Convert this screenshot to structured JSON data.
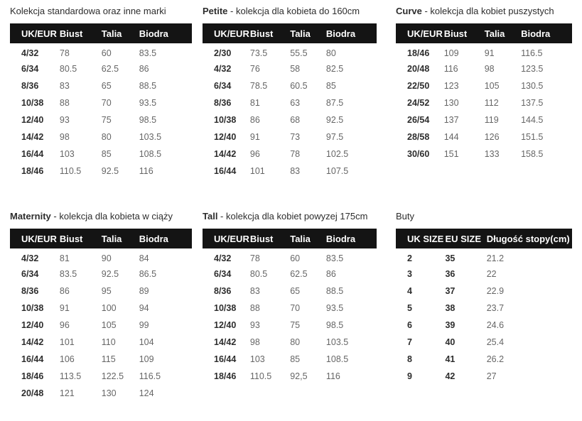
{
  "colors": {
    "header_bg": "#141414",
    "header_text": "#ffffff",
    "body_text": "#666666",
    "strong_text": "#2d2d2d"
  },
  "tables": [
    {
      "name": "standard",
      "title_bold": "",
      "title_rest": "Kolekcja standardowa oraz inne marki",
      "headers": [
        "UK/EUR",
        "Biust",
        "Talia",
        "Biodra"
      ],
      "bold_cols": 1,
      "rows": [
        [
          "4/32",
          "78",
          "60",
          "83.5"
        ],
        [
          "6/34",
          "80.5",
          "62.5",
          "86"
        ],
        [
          "8/36",
          "83",
          "65",
          "88.5"
        ],
        [
          "10/38",
          "88",
          "70",
          "93.5"
        ],
        [
          "12/40",
          "93",
          "75",
          "98.5"
        ],
        [
          "14/42",
          "98",
          "80",
          "103.5"
        ],
        [
          "16/44",
          "103",
          "85",
          "108.5"
        ],
        [
          "18/46",
          "110.5",
          "92.5",
          "116"
        ]
      ]
    },
    {
      "name": "petite",
      "title_bold": "Petite",
      "title_rest": " - kolekcja dla kobieta do 160cm",
      "headers": [
        "UK/EUR",
        "Biust",
        "Talia",
        "Biodra"
      ],
      "bold_cols": 1,
      "rows": [
        [
          "2/30",
          "73.5",
          "55.5",
          "80"
        ],
        [
          "4/32",
          "76",
          "58",
          "82.5"
        ],
        [
          "6/34",
          "78.5",
          "60.5",
          "85"
        ],
        [
          "8/36",
          "81",
          "63",
          "87.5"
        ],
        [
          "10/38",
          "86",
          "68",
          "92.5"
        ],
        [
          "12/40",
          "91",
          "73",
          "97.5"
        ],
        [
          "14/42",
          "96",
          "78",
          "102.5"
        ],
        [
          "16/44",
          "101",
          "83",
          "107.5"
        ]
      ]
    },
    {
      "name": "curve",
      "title_bold": "Curve",
      "title_rest": " - kolekcja dla kobiet puszystych",
      "headers": [
        "UK/EUR",
        "Biust",
        "Talia",
        "Biodra"
      ],
      "bold_cols": 1,
      "rows": [
        [
          "18/46",
          "109",
          "91",
          "116.5"
        ],
        [
          "20/48",
          "116",
          "98",
          "123.5"
        ],
        [
          "22/50",
          "123",
          "105",
          "130.5"
        ],
        [
          "24/52",
          "130",
          "112",
          "137.5"
        ],
        [
          "26/54",
          "137",
          "119",
          "144.5"
        ],
        [
          "28/58",
          "144",
          "126",
          "151.5"
        ],
        [
          "30/60",
          "151",
          "133",
          "158.5"
        ]
      ]
    },
    {
      "name": "maternity",
      "title_bold": "Maternity",
      "title_rest": " - kolekcja dla kobieta w ciąży",
      "headers": [
        "UK/EUR",
        "Biust",
        "Talia",
        "Biodra"
      ],
      "bold_cols": 1,
      "rows": [
        [
          "4/32",
          "81",
          "90",
          "84"
        ],
        [
          "6/34",
          "83.5",
          "92.5",
          "86.5"
        ],
        [
          "8/36",
          "86",
          "95",
          "89"
        ],
        [
          "10/38",
          "91",
          "100",
          "94"
        ],
        [
          "12/40",
          "96",
          "105",
          "99"
        ],
        [
          "14/42",
          "101",
          "110",
          "104"
        ],
        [
          "16/44",
          "106",
          "115",
          "109"
        ],
        [
          "18/46",
          "113.5",
          "122.5",
          "116.5"
        ],
        [
          "20/48",
          "121",
          "130",
          "124"
        ]
      ]
    },
    {
      "name": "tall",
      "title_bold": "Tall",
      "title_rest": " - kolekcja dla kobiet powyzej 175cm",
      "headers": [
        "UK/EUR",
        "Biust",
        "Talia",
        "Biodra"
      ],
      "bold_cols": 1,
      "rows": [
        [
          "4/32",
          "78",
          "60",
          "83.5"
        ],
        [
          "6/34",
          "80.5",
          "62.5",
          "86"
        ],
        [
          "8/36",
          "83",
          "65",
          "88.5"
        ],
        [
          "10/38",
          "88",
          "70",
          "93.5"
        ],
        [
          "12/40",
          "93",
          "75",
          "98.5"
        ],
        [
          "14/42",
          "98",
          "80",
          "103.5"
        ],
        [
          "16/44",
          "103",
          "85",
          "108.5"
        ],
        [
          "18/46",
          "110.5",
          "92,5",
          "116"
        ]
      ]
    },
    {
      "name": "shoes",
      "title_bold": "",
      "title_rest": "Buty",
      "headers": [
        "UK SIZE",
        "EU SIZE",
        "Długość stopy(cm)"
      ],
      "bold_cols": 2,
      "rows": [
        [
          "2",
          "35",
          "21.2"
        ],
        [
          "3",
          "36",
          "22"
        ],
        [
          "4",
          "37",
          "22.9"
        ],
        [
          "5",
          "38",
          "23.7"
        ],
        [
          "6",
          "39",
          "24.6"
        ],
        [
          "7",
          "40",
          "25.4"
        ],
        [
          "8",
          "41",
          "26.2"
        ],
        [
          "9",
          "42",
          "27"
        ]
      ]
    }
  ]
}
